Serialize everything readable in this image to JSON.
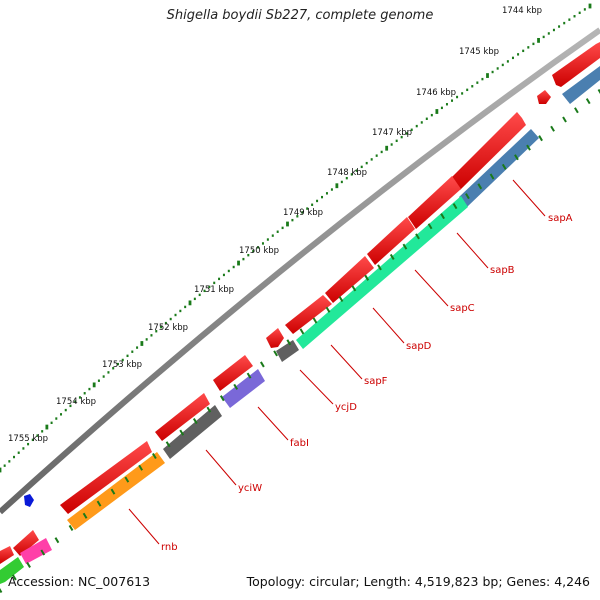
{
  "header": {
    "title": "Shigella boydii Sb227, complete genome"
  },
  "footer": {
    "accession": "Accession: NC_007613",
    "summary": "Topology: circular; Length: 4,519,823 bp; Genes: 4,246"
  },
  "ruler": {
    "tick_labels": [
      "1744 kbp",
      "1745 kbp",
      "1746 kbp",
      "1747 kbp",
      "1748 kbp",
      "1749 kbp",
      "1750 kbp",
      "1751 kbp",
      "1752 kbp",
      "1753 kbp",
      "1754 kbp",
      "1755 kbp"
    ],
    "tick_color": "#1a7a1a"
  },
  "genes": {
    "labels": [
      "sapA",
      "sapB",
      "sapC",
      "sapD",
      "sapF",
      "ycjD",
      "fabI",
      "yciW",
      "rnb"
    ],
    "label_color": "#cc0000"
  },
  "colors": {
    "backbone": "#8a8a8a",
    "cds": "#ee1111",
    "sap_complex": "#22e89a",
    "sapA_track": "#4a7fb0",
    "ycjD_track": "#606060",
    "fabI_track": "#7a68d8",
    "yciW_track": "#606060",
    "rnb_track": "#ff9a1a",
    "pink_track": "#ff3fa8",
    "green_track": "#33cc33",
    "blue_marker": "#0a1ad8"
  }
}
